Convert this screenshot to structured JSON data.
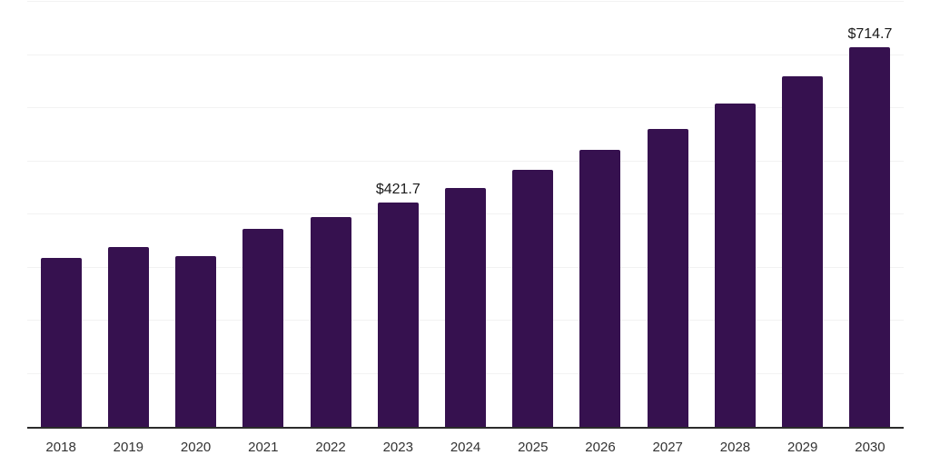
{
  "chart_data": {
    "type": "bar",
    "title": "",
    "xlabel": "",
    "ylabel": "",
    "categories": [
      "2018",
      "2019",
      "2020",
      "2021",
      "2022",
      "2023",
      "2024",
      "2025",
      "2026",
      "2027",
      "2028",
      "2029",
      "2030"
    ],
    "values": [
      317.9,
      338.3,
      321.9,
      373.2,
      395.3,
      421.7,
      449.9,
      483.9,
      522.0,
      560.4,
      608.1,
      659.2,
      714.7
    ],
    "data_labels": [
      "",
      "",
      "",
      "",
      "",
      "$421.7",
      "",
      "",
      "",
      "",
      "",
      "",
      "$714.7"
    ],
    "ylim": [
      0,
      800
    ],
    "grid_step": 100,
    "grid": "horizontal",
    "y_tick_labels_visible": false,
    "legend_position": "none",
    "colors": {
      "bar": "#36114F",
      "axis_line": "#2B2B2B",
      "gridline": "#F2F2F2",
      "tick_label": "#333333",
      "data_label": "#1A1A1A",
      "background": "#FFFFFF"
    }
  }
}
